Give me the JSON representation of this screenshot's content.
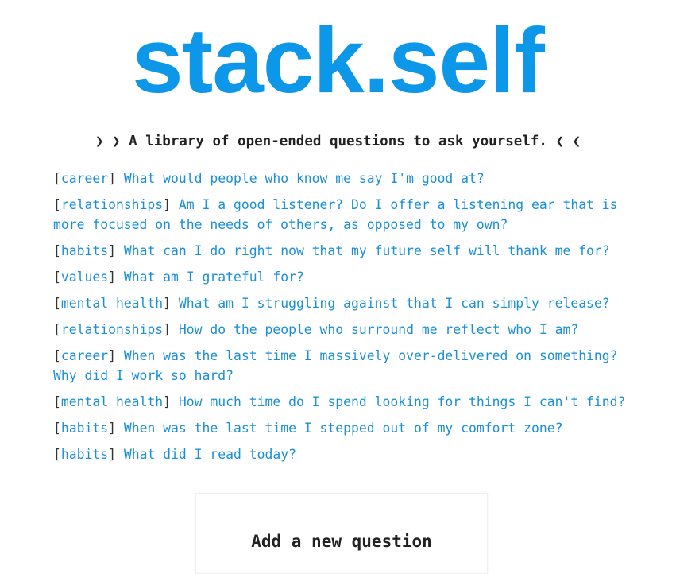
{
  "header": {
    "logo_text": "stack.self",
    "tagline_prefix": "❯ ❯",
    "tagline_text": "A library of open-ended questions to ask yourself.",
    "tagline_suffix": "❮ ❮"
  },
  "colors": {
    "accent": "#0d97e8",
    "link": "#1a8fd6",
    "text": "#222222"
  },
  "questions": [
    {
      "category": "career",
      "text": "What would people who know me say I'm good at?"
    },
    {
      "category": "relationships",
      "text": "Am I a good listener? Do I offer a listening ear that is more focused on the needs of others, as opposed to my own?"
    },
    {
      "category": "habits",
      "text": "What can I do right now that my future self will thank me for?"
    },
    {
      "category": "values",
      "text": "What am I grateful for?"
    },
    {
      "category": "mental health",
      "text": "What am I struggling against that I can simply release?"
    },
    {
      "category": "relationships",
      "text": "How do the people who surround me reflect who I am?"
    },
    {
      "category": "career",
      "text": "When was the last time I massively over-delivered on something? Why did I work so hard?"
    },
    {
      "category": "mental health",
      "text": "How much time do I spend looking for things I can't find?"
    },
    {
      "category": "habits",
      "text": "When was the last time I stepped out of my comfort zone?"
    },
    {
      "category": "habits",
      "text": "What did I read today?"
    }
  ],
  "add_question": {
    "title": "Add a new question"
  }
}
